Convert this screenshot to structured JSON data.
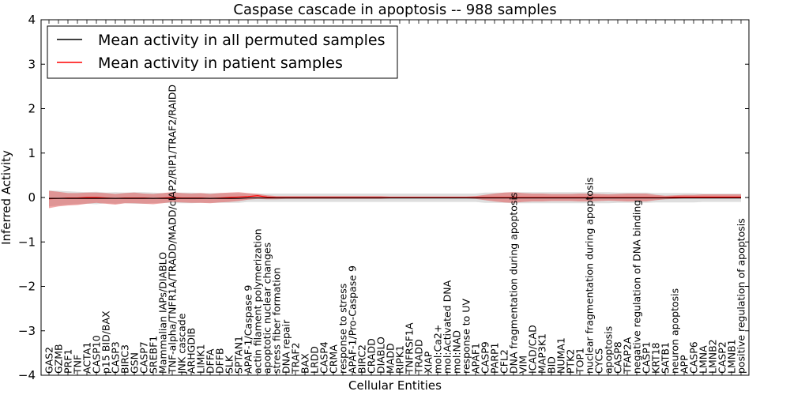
{
  "chart_data": {
    "type": "line",
    "title": "Caspase cascade in apoptosis -- 988 samples",
    "xlabel": "Cellular Entities",
    "ylabel": "Inferred Activity",
    "ylim": [
      -4,
      4
    ],
    "yticks": [
      4,
      3,
      2,
      1,
      0,
      -1,
      -2,
      -3,
      -4
    ],
    "ytick_labels": [
      "4",
      "3",
      "2",
      "1",
      "0",
      "−1",
      "−2",
      "−3",
      "−4"
    ],
    "grid": false,
    "legend_position": "top-left",
    "categories": [
      "GAS2",
      "GZMB",
      "PRF1",
      "TNF",
      "ACTA1",
      "CASP10",
      "p15 BID/BAX",
      "CASP3",
      "BIRC3",
      "GSN",
      "CASP7",
      "SREBF1",
      "Mammalian IAPs/DIABLO",
      "TNF-alpha/TNFR1A/TRADD/MADD/cIAP2/RIP1/TRAF2/RAIDD",
      "JNK cascade",
      "ARHGDIB",
      "LIMK1",
      "DFFA",
      "DFFB",
      "SLK",
      "SPTAN1",
      "APAF-1/Caspase 9",
      "actin filament polymerization",
      "apoptotic nuclear changes",
      "stress fiber formation",
      "DNA repair",
      "TRAF2",
      "BAX",
      "LRDD",
      "CASP4",
      "CRMA",
      "response to stress",
      "APAF-1/Pro-Caspase 9",
      "BIRC2",
      "CRADD",
      "DIABLO",
      "MADD",
      "RIPK1",
      "TNFRSF1A",
      "TRADD",
      "XIAP",
      "mol:Ca2+",
      "mol:Activated DNA",
      "mol:NAD",
      "response to UV",
      "APAF1",
      "CASP9",
      "PARP1",
      "CFL2",
      "DNA fragmentation during apoptosis",
      "VIM",
      "ICAD/CAD",
      "MAP3K1",
      "BID",
      "NUMA1",
      "PTK2",
      "TOP1",
      "nuclear fragmentation during apoptosis",
      "CYCS",
      "apoptosis",
      "CASP8",
      "TFAP2A",
      "negative regulation of DNA binding",
      "CASP1",
      "KRT18",
      "SATB1",
      "neuron apoptosis",
      "APP",
      "CASP6",
      "LMNA",
      "LMNB2",
      "CASP2",
      "LMNB1",
      "positive regulation of apoptosis"
    ],
    "series": [
      {
        "name": "Mean activity in all permuted samples",
        "color": "#000000",
        "values": [
          -0.02,
          -0.02,
          -0.02,
          -0.02,
          -0.02,
          -0.02,
          -0.02,
          -0.02,
          -0.02,
          -0.02,
          -0.02,
          -0.02,
          -0.02,
          -0.02,
          -0.02,
          -0.02,
          -0.02,
          -0.02,
          -0.02,
          -0.02,
          -0.02,
          -0.01,
          -0.01,
          -0.01,
          -0.01,
          -0.01,
          -0.01,
          -0.01,
          -0.01,
          -0.01,
          -0.01,
          -0.01,
          -0.01,
          -0.01,
          -0.01,
          -0.01,
          -0.01,
          -0.01,
          -0.01,
          -0.01,
          -0.01,
          -0.01,
          -0.01,
          -0.01,
          -0.01,
          -0.01,
          -0.01,
          -0.01,
          -0.01,
          -0.01,
          -0.01,
          -0.01,
          -0.01,
          -0.01,
          -0.01,
          -0.01,
          -0.01,
          -0.01,
          -0.01,
          -0.01,
          -0.01,
          -0.01,
          -0.01,
          -0.01,
          -0.01,
          -0.01,
          -0.01,
          -0.01,
          -0.01,
          -0.01,
          -0.01,
          -0.01,
          -0.01,
          -0.01
        ],
        "lower": [
          -0.2,
          -0.18,
          -0.16,
          -0.15,
          -0.14,
          -0.15,
          -0.13,
          -0.14,
          -0.13,
          -0.14,
          -0.14,
          -0.13,
          -0.12,
          -0.13,
          -0.13,
          -0.13,
          -0.12,
          -0.12,
          -0.12,
          -0.12,
          -0.12,
          -0.1,
          -0.1,
          -0.1,
          -0.1,
          -0.1,
          -0.1,
          -0.1,
          -0.1,
          -0.1,
          -0.1,
          -0.1,
          -0.1,
          -0.1,
          -0.1,
          -0.1,
          -0.1,
          -0.1,
          -0.1,
          -0.1,
          -0.1,
          -0.1,
          -0.1,
          -0.1,
          -0.1,
          -0.1,
          -0.12,
          -0.12,
          -0.12,
          -0.13,
          -0.13,
          -0.13,
          -0.13,
          -0.13,
          -0.13,
          -0.13,
          -0.13,
          -0.13,
          -0.13,
          -0.13,
          -0.12,
          -0.12,
          -0.12,
          -0.12,
          -0.11,
          -0.11,
          -0.11,
          -0.11,
          -0.11,
          -0.1,
          -0.1,
          -0.1,
          -0.1,
          -0.1
        ],
        "upper": [
          0.16,
          0.15,
          0.14,
          0.13,
          0.12,
          0.13,
          0.11,
          0.12,
          0.11,
          0.12,
          0.12,
          0.11,
          0.1,
          0.11,
          0.11,
          0.11,
          0.1,
          0.1,
          0.1,
          0.1,
          0.1,
          0.09,
          0.09,
          0.09,
          0.09,
          0.09,
          0.09,
          0.09,
          0.09,
          0.09,
          0.09,
          0.09,
          0.09,
          0.09,
          0.09,
          0.09,
          0.09,
          0.09,
          0.09,
          0.09,
          0.09,
          0.09,
          0.09,
          0.09,
          0.09,
          0.09,
          0.11,
          0.11,
          0.11,
          0.12,
          0.12,
          0.12,
          0.12,
          0.12,
          0.12,
          0.12,
          0.12,
          0.12,
          0.12,
          0.12,
          0.11,
          0.11,
          0.11,
          0.11,
          0.1,
          0.1,
          0.1,
          0.1,
          0.1,
          0.09,
          0.09,
          0.09,
          0.09,
          0.09
        ]
      },
      {
        "name": "Mean activity in patient samples",
        "color": "#ff0000",
        "values": [
          -0.03,
          -0.02,
          -0.01,
          -0.01,
          0.0,
          0.0,
          -0.01,
          -0.02,
          -0.01,
          -0.01,
          -0.01,
          -0.02,
          -0.01,
          0.0,
          -0.01,
          -0.01,
          -0.01,
          -0.02,
          -0.01,
          0.0,
          0.01,
          0.02,
          0.04,
          0.01,
          0.0,
          0.0,
          0.0,
          0.0,
          0.0,
          0.0,
          0.0,
          0.0,
          0.0,
          0.0,
          0.0,
          0.0,
          0.0,
          0.0,
          0.0,
          0.0,
          0.0,
          0.0,
          0.0,
          0.0,
          0.0,
          0.0,
          0.0,
          0.0,
          0.0,
          0.0,
          0.0,
          0.0,
          0.0,
          0.0,
          0.0,
          0.0,
          0.0,
          0.0,
          0.0,
          0.0,
          0.0,
          0.0,
          0.0,
          0.0,
          0.0,
          0.0,
          0.01,
          0.01,
          0.01,
          0.01,
          0.01,
          0.01,
          0.01,
          0.01
        ],
        "lower": [
          -0.24,
          -0.2,
          -0.18,
          -0.17,
          -0.14,
          -0.12,
          -0.14,
          -0.16,
          -0.13,
          -0.13,
          -0.14,
          -0.15,
          -0.13,
          -0.1,
          -0.11,
          -0.12,
          -0.12,
          -0.13,
          -0.11,
          -0.1,
          -0.08,
          -0.05,
          -0.03,
          -0.04,
          -0.04,
          -0.03,
          -0.03,
          -0.03,
          -0.03,
          -0.03,
          -0.03,
          -0.03,
          -0.03,
          -0.03,
          -0.03,
          -0.03,
          -0.02,
          -0.02,
          -0.02,
          -0.02,
          -0.02,
          -0.02,
          -0.02,
          -0.02,
          -0.02,
          -0.03,
          -0.06,
          -0.09,
          -0.11,
          -0.12,
          -0.1,
          -0.09,
          -0.09,
          -0.08,
          -0.08,
          -0.08,
          -0.09,
          -0.09,
          -0.08,
          -0.07,
          -0.08,
          -0.09,
          -0.09,
          -0.09,
          -0.06,
          -0.04,
          -0.03,
          -0.02,
          -0.02,
          -0.02,
          -0.02,
          -0.02,
          -0.02,
          -0.02
        ],
        "upper": [
          0.15,
          0.13,
          0.1,
          0.1,
          0.11,
          0.11,
          0.1,
          0.08,
          0.1,
          0.11,
          0.09,
          0.08,
          0.1,
          0.12,
          0.1,
          0.09,
          0.1,
          0.08,
          0.1,
          0.11,
          0.12,
          0.1,
          0.08,
          0.05,
          0.03,
          0.03,
          0.03,
          0.03,
          0.03,
          0.03,
          0.03,
          0.03,
          0.03,
          0.03,
          0.03,
          0.03,
          0.02,
          0.02,
          0.02,
          0.02,
          0.02,
          0.02,
          0.02,
          0.02,
          0.02,
          0.03,
          0.06,
          0.09,
          0.11,
          0.12,
          0.1,
          0.09,
          0.09,
          0.08,
          0.08,
          0.08,
          0.09,
          0.09,
          0.08,
          0.07,
          0.08,
          0.09,
          0.09,
          0.09,
          0.06,
          0.04,
          0.05,
          0.06,
          0.06,
          0.07,
          0.07,
          0.07,
          0.07,
          0.07
        ]
      }
    ]
  }
}
